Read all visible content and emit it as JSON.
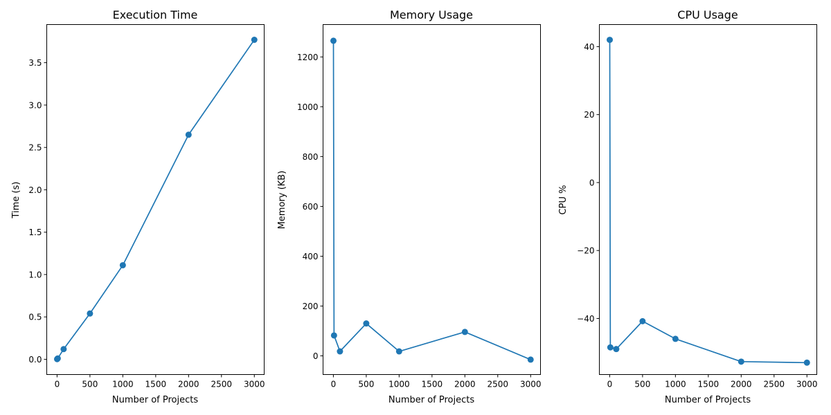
{
  "chart_data": [
    {
      "type": "line",
      "title": "Execution Time",
      "xlabel": "Number of Projects",
      "ylabel": "Time (s)",
      "xlim": [
        -157,
        3150
      ],
      "ylim": [
        -0.18,
        3.95
      ],
      "xticks": [
        {
          "value": 0,
          "label": "0"
        },
        {
          "value": 500,
          "label": "500"
        },
        {
          "value": 1000,
          "label": "1000"
        },
        {
          "value": 1500,
          "label": "1500"
        },
        {
          "value": 2000,
          "label": "2000"
        },
        {
          "value": 2500,
          "label": "2500"
        },
        {
          "value": 3000,
          "label": "3000"
        }
      ],
      "yticks": [
        {
          "value": 0.0,
          "label": "0.0"
        },
        {
          "value": 0.5,
          "label": "0.5"
        },
        {
          "value": 1.0,
          "label": "1.0"
        },
        {
          "value": 1.5,
          "label": "1.5"
        },
        {
          "value": 2.0,
          "label": "2.0"
        },
        {
          "value": 2.5,
          "label": "2.5"
        },
        {
          "value": 3.0,
          "label": "3.0"
        },
        {
          "value": 3.5,
          "label": "3.5"
        }
      ],
      "series": [
        {
          "color": "#1f77b4",
          "x": [
            1,
            10,
            100,
            500,
            1000,
            2000,
            3000
          ],
          "y": [
            0.002,
            0.01,
            0.12,
            0.54,
            1.11,
            2.65,
            3.77
          ]
        }
      ],
      "grid": false
    },
    {
      "type": "line",
      "title": "Memory Usage",
      "xlabel": "Number of Projects",
      "ylabel": "Memory (KB)",
      "xlim": [
        -157,
        3150
      ],
      "ylim": [
        -75,
        1330
      ],
      "xticks": [
        {
          "value": 0,
          "label": "0"
        },
        {
          "value": 500,
          "label": "500"
        },
        {
          "value": 1000,
          "label": "1000"
        },
        {
          "value": 1500,
          "label": "1500"
        },
        {
          "value": 2000,
          "label": "2000"
        },
        {
          "value": 2500,
          "label": "2500"
        },
        {
          "value": 3000,
          "label": "3000"
        }
      ],
      "yticks": [
        {
          "value": 0,
          "label": "0"
        },
        {
          "value": 200,
          "label": "200"
        },
        {
          "value": 400,
          "label": "400"
        },
        {
          "value": 600,
          "label": "600"
        },
        {
          "value": 800,
          "label": "800"
        },
        {
          "value": 1000,
          "label": "1000"
        },
        {
          "value": 1200,
          "label": "1200"
        }
      ],
      "series": [
        {
          "color": "#1f77b4",
          "x": [
            1,
            10,
            100,
            500,
            1000,
            2000,
            3000
          ],
          "y": [
            1265,
            82,
            18,
            130,
            18,
            96,
            -15
          ]
        }
      ],
      "grid": false
    },
    {
      "type": "line",
      "title": "CPU Usage",
      "xlabel": "Number of Projects",
      "ylabel": "CPU %",
      "xlim": [
        -157,
        3150
      ],
      "ylim": [
        -56.5,
        46.5
      ],
      "xticks": [
        {
          "value": 0,
          "label": "0"
        },
        {
          "value": 500,
          "label": "500"
        },
        {
          "value": 1000,
          "label": "1000"
        },
        {
          "value": 1500,
          "label": "1500"
        },
        {
          "value": 2000,
          "label": "2000"
        },
        {
          "value": 2500,
          "label": "2500"
        },
        {
          "value": 3000,
          "label": "3000"
        }
      ],
      "yticks": [
        {
          "value": -40,
          "label": "−40"
        },
        {
          "value": -20,
          "label": "−20"
        },
        {
          "value": 0,
          "label": "0"
        },
        {
          "value": 20,
          "label": "20"
        },
        {
          "value": 40,
          "label": "40"
        }
      ],
      "series": [
        {
          "color": "#1f77b4",
          "x": [
            1,
            10,
            100,
            500,
            1000,
            2000,
            3000
          ],
          "y": [
            42,
            -48.5,
            -49,
            -40.8,
            -46,
            -52.7,
            -53
          ]
        }
      ],
      "grid": false
    }
  ]
}
